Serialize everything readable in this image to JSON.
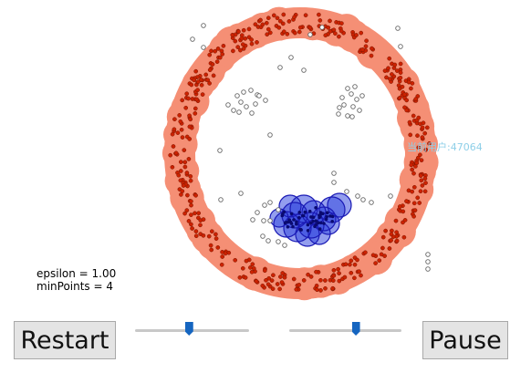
{
  "visualization": {
    "ring_color": "#f58f75",
    "core_point_color": "#cc2200",
    "cluster_fill_color": "#3b4fe0",
    "cluster_stroke_color": "#1a1ab5",
    "noise_point_color": "#666666"
  },
  "watermark": {
    "text": "当前用户:47064"
  },
  "params": {
    "epsilon_text": "epsilon = 1.00",
    "minpoints_text": "minPoints = 4"
  },
  "controls": {
    "restart_label": "Restart",
    "pause_label": "Pause",
    "epsilon_slider": {
      "value": 0.47
    },
    "minpoints_slider": {
      "value": 0.59
    }
  }
}
